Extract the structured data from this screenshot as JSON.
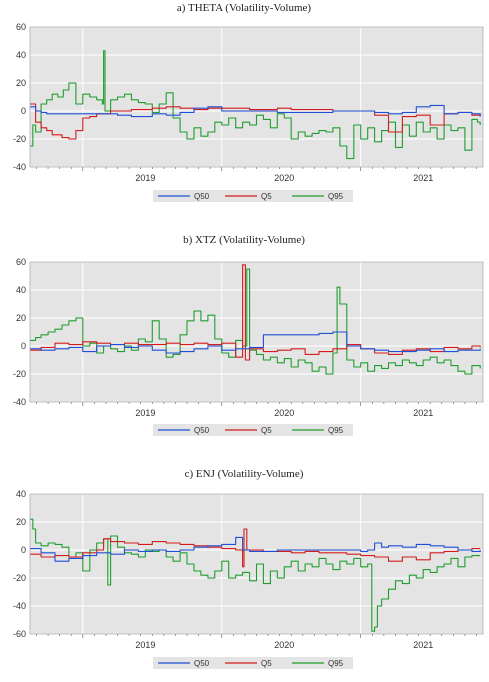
{
  "chart_data": [
    {
      "type": "line",
      "title": "a)   THETA (Volatility-Volume)",
      "ylim": [
        -40,
        60
      ],
      "yticks": [
        60,
        40,
        20,
        0,
        -20,
        -40
      ],
      "xlim": [
        2018.62,
        2021.88
      ],
      "xticks": [
        2019,
        2020,
        2021
      ],
      "grid": true,
      "legend_position": "bottom-center",
      "series": [
        {
          "name": "Q50",
          "color": "#1f4fd6",
          "x": [
            2018.62,
            2018.66,
            2018.7,
            2018.74,
            2018.78,
            2018.85,
            2018.95,
            2019.05,
            2019.12,
            2019.25,
            2019.35,
            2019.5,
            2019.6,
            2019.7,
            2019.8,
            2019.9,
            2020.0,
            2020.1,
            2020.2,
            2020.3,
            2020.4,
            2020.5,
            2020.6,
            2020.7,
            2020.8,
            2020.9,
            2021.0,
            2021.1,
            2021.2,
            2021.3,
            2021.4,
            2021.5,
            2021.6,
            2021.7,
            2021.8,
            2021.86
          ],
          "values": [
            3,
            0,
            -1,
            -2,
            -2,
            -2,
            -2,
            -2,
            -2,
            -3,
            -4,
            -2,
            -3,
            -1,
            2,
            3,
            0,
            0,
            0,
            0,
            -1,
            -1,
            -1,
            -1,
            0,
            0,
            0,
            -1,
            -2,
            -1,
            3,
            4,
            -2,
            -1,
            -2,
            -4
          ]
        },
        {
          "name": "Q5",
          "color": "#d41c1c",
          "x": [
            2018.62,
            2018.66,
            2018.7,
            2018.74,
            2018.78,
            2018.85,
            2018.9,
            2018.95,
            2019.0,
            2019.05,
            2019.1,
            2019.2,
            2019.35,
            2019.5,
            2019.6,
            2019.7,
            2019.8,
            2019.9,
            2020.0,
            2020.1,
            2020.2,
            2020.3,
            2020.4,
            2020.5,
            2020.6,
            2020.7,
            2020.8,
            2020.9,
            2021.0,
            2021.1,
            2021.2,
            2021.3,
            2021.4,
            2021.5,
            2021.6,
            2021.7,
            2021.8,
            2021.86
          ],
          "values": [
            5,
            -8,
            -12,
            -14,
            -17,
            -19,
            -20,
            -14,
            -5,
            -4,
            -2,
            0,
            1,
            2,
            3,
            2,
            1,
            2,
            2,
            2,
            1,
            1,
            2,
            1,
            1,
            1,
            0,
            0,
            0,
            -3,
            -15,
            -4,
            -3,
            -10,
            -2,
            -1,
            -3,
            -2
          ]
        },
        {
          "name": "Q95",
          "color": "#1e9e2e",
          "x": [
            2018.62,
            2018.64,
            2018.66,
            2018.7,
            2018.74,
            2018.78,
            2018.82,
            2018.86,
            2018.9,
            2018.95,
            2019.0,
            2019.05,
            2019.1,
            2019.14,
            2019.15,
            2019.16,
            2019.2,
            2019.25,
            2019.3,
            2019.35,
            2019.4,
            2019.45,
            2019.5,
            2019.55,
            2019.6,
            2019.65,
            2019.7,
            2019.75,
            2019.8,
            2019.85,
            2019.9,
            2019.95,
            2020.0,
            2020.05,
            2020.1,
            2020.15,
            2020.2,
            2020.25,
            2020.3,
            2020.35,
            2020.4,
            2020.45,
            2020.5,
            2020.55,
            2020.6,
            2020.65,
            2020.7,
            2020.75,
            2020.8,
            2020.85,
            2020.9,
            2020.95,
            2021.0,
            2021.05,
            2021.1,
            2021.15,
            2021.2,
            2021.25,
            2021.3,
            2021.35,
            2021.4,
            2021.45,
            2021.5,
            2021.55,
            2021.6,
            2021.65,
            2021.7,
            2021.75,
            2021.8,
            2021.84,
            2021.86
          ],
          "values": [
            -25,
            -10,
            -15,
            5,
            8,
            12,
            10,
            15,
            20,
            5,
            12,
            10,
            8,
            5,
            43,
            0,
            8,
            10,
            12,
            8,
            6,
            5,
            -1,
            5,
            13,
            -5,
            -15,
            -20,
            -12,
            -18,
            -15,
            -8,
            -10,
            -5,
            -12,
            -8,
            -10,
            -3,
            -6,
            -12,
            -2,
            -5,
            -20,
            -15,
            -18,
            -16,
            -14,
            -15,
            -12,
            -25,
            -34,
            -10,
            -20,
            -12,
            -22,
            -14,
            -8,
            -26,
            -10,
            -18,
            -8,
            -15,
            -12,
            -20,
            -10,
            -14,
            -12,
            -28,
            -6,
            -8,
            -10
          ]
        }
      ]
    },
    {
      "type": "line",
      "title": "b)   XTZ (Volatility-Volume)",
      "ylim": [
        -40,
        60
      ],
      "yticks": [
        60,
        40,
        20,
        0,
        -20,
        -40
      ],
      "xlim": [
        2018.62,
        2021.88
      ],
      "xticks": [
        2019,
        2020,
        2021
      ],
      "grid": true,
      "legend_position": "bottom-center",
      "series": [
        {
          "name": "Q50",
          "color": "#1f4fd6",
          "x": [
            2018.62,
            2018.7,
            2018.8,
            2018.9,
            2019.0,
            2019.1,
            2019.2,
            2019.3,
            2019.4,
            2019.5,
            2019.6,
            2019.7,
            2019.8,
            2019.9,
            2020.0,
            2020.1,
            2020.2,
            2020.3,
            2020.4,
            2020.5,
            2020.6,
            2020.7,
            2020.8,
            2020.9,
            2021.0,
            2021.1,
            2021.2,
            2021.3,
            2021.4,
            2021.5,
            2021.6,
            2021.7,
            2021.8,
            2021.86
          ],
          "values": [
            -2,
            -3,
            -2,
            -1,
            -4,
            0,
            1,
            -1,
            0,
            -3,
            -5,
            -4,
            -2,
            0,
            -3,
            -2,
            -1,
            8,
            8,
            8,
            8,
            9,
            10,
            0,
            -2,
            -3,
            -4,
            -4,
            -3,
            -2,
            -4,
            -3,
            -3,
            -2
          ]
        },
        {
          "name": "Q5",
          "color": "#d41c1c",
          "x": [
            2018.62,
            2018.7,
            2018.8,
            2018.9,
            2019.0,
            2019.1,
            2019.2,
            2019.3,
            2019.4,
            2019.5,
            2019.6,
            2019.7,
            2019.8,
            2019.9,
            2020.0,
            2020.1,
            2020.15,
            2020.17,
            2020.2,
            2020.3,
            2020.4,
            2020.5,
            2020.6,
            2020.7,
            2020.8,
            2020.9,
            2021.0,
            2021.1,
            2021.2,
            2021.3,
            2021.4,
            2021.5,
            2021.6,
            2021.7,
            2021.8,
            2021.86
          ],
          "values": [
            -3,
            -1,
            2,
            1,
            3,
            2,
            1,
            2,
            1,
            1,
            2,
            1,
            2,
            1,
            2,
            -8,
            58,
            -10,
            -2,
            -4,
            -3,
            -2,
            -6,
            -4,
            -2,
            1,
            -2,
            -5,
            -6,
            -3,
            -2,
            -4,
            -1,
            -2,
            0,
            -1
          ]
        },
        {
          "name": "Q95",
          "color": "#1e9e2e",
          "x": [
            2018.62,
            2018.66,
            2018.7,
            2018.75,
            2018.8,
            2018.85,
            2018.9,
            2018.95,
            2019.0,
            2019.05,
            2019.1,
            2019.15,
            2019.2,
            2019.25,
            2019.3,
            2019.35,
            2019.4,
            2019.45,
            2019.5,
            2019.55,
            2019.6,
            2019.65,
            2019.7,
            2019.75,
            2019.8,
            2019.85,
            2019.9,
            2019.95,
            2020.0,
            2020.05,
            2020.1,
            2020.15,
            2020.18,
            2020.2,
            2020.25,
            2020.3,
            2020.35,
            2020.4,
            2020.45,
            2020.5,
            2020.55,
            2020.6,
            2020.65,
            2020.7,
            2020.75,
            2020.8,
            2020.83,
            2020.85,
            2020.9,
            2020.95,
            2021.0,
            2021.05,
            2021.1,
            2021.15,
            2021.2,
            2021.25,
            2021.3,
            2021.35,
            2021.4,
            2021.45,
            2021.5,
            2021.55,
            2021.6,
            2021.65,
            2021.7,
            2021.75,
            2021.8,
            2021.86
          ],
          "values": [
            4,
            6,
            8,
            10,
            12,
            15,
            18,
            20,
            0,
            2,
            -5,
            0,
            -2,
            -4,
            0,
            -3,
            5,
            3,
            18,
            5,
            -8,
            -6,
            8,
            18,
            25,
            18,
            22,
            5,
            -5,
            -8,
            4,
            0,
            55,
            -3,
            -6,
            -10,
            -8,
            -12,
            -9,
            -15,
            -10,
            -12,
            -18,
            -15,
            -20,
            -5,
            42,
            30,
            -10,
            -15,
            -12,
            -18,
            -14,
            -16,
            -12,
            -14,
            -10,
            -12,
            -14,
            -10,
            -8,
            -12,
            -10,
            -14,
            -18,
            -20,
            -14,
            -16
          ]
        }
      ]
    },
    {
      "type": "line",
      "title": "c)   ENJ (Volatility-Volume)",
      "ylim": [
        -60,
        40
      ],
      "yticks": [
        40,
        20,
        0,
        -20,
        -40,
        -60
      ],
      "xlim": [
        2018.62,
        2021.88
      ],
      "xticks": [
        2019,
        2020,
        2021
      ],
      "grid": true,
      "legend_position": "bottom-center",
      "series": [
        {
          "name": "Q50",
          "color": "#1f4fd6",
          "x": [
            2018.62,
            2018.7,
            2018.8,
            2018.9,
            2019.0,
            2019.1,
            2019.2,
            2019.3,
            2019.4,
            2019.5,
            2019.6,
            2019.7,
            2019.8,
            2019.9,
            2020.0,
            2020.1,
            2020.15,
            2020.2,
            2020.3,
            2020.4,
            2020.5,
            2020.6,
            2020.7,
            2020.8,
            2020.9,
            2021.0,
            2021.05,
            2021.1,
            2021.15,
            2021.2,
            2021.3,
            2021.4,
            2021.5,
            2021.6,
            2021.7,
            2021.8,
            2021.86
          ],
          "values": [
            1,
            -2,
            -8,
            -6,
            -4,
            -2,
            -3,
            0,
            -1,
            0,
            -1,
            0,
            2,
            3,
            4,
            9,
            0,
            -1,
            -1,
            0,
            0,
            0,
            0,
            0,
            0,
            -1,
            0,
            5,
            2,
            3,
            2,
            4,
            3,
            2,
            0,
            -1,
            0
          ]
        },
        {
          "name": "Q5",
          "color": "#d41c1c",
          "x": [
            2018.62,
            2018.7,
            2018.8,
            2018.9,
            2019.0,
            2019.1,
            2019.15,
            2019.2,
            2019.3,
            2019.4,
            2019.5,
            2019.6,
            2019.7,
            2019.8,
            2019.9,
            2020.0,
            2020.1,
            2020.15,
            2020.16,
            2020.18,
            2020.3,
            2020.4,
            2020.5,
            2020.6,
            2020.7,
            2020.8,
            2020.9,
            2021.0,
            2021.1,
            2021.2,
            2021.3,
            2021.4,
            2021.5,
            2021.6,
            2021.7,
            2021.8,
            2021.86
          ],
          "values": [
            -3,
            -5,
            -4,
            -5,
            -2,
            0,
            8,
            6,
            5,
            4,
            6,
            5,
            4,
            3,
            2,
            1,
            0,
            -12,
            15,
            0,
            -1,
            -1,
            -2,
            -1,
            -2,
            -2,
            -3,
            -4,
            -5,
            -8,
            -5,
            -7,
            -2,
            -1,
            0,
            1,
            1
          ]
        },
        {
          "name": "Q95",
          "color": "#1e9e2e",
          "x": [
            2018.62,
            2018.64,
            2018.66,
            2018.7,
            2018.75,
            2018.8,
            2018.85,
            2018.9,
            2018.95,
            2019.0,
            2019.05,
            2019.1,
            2019.15,
            2019.18,
            2019.2,
            2019.25,
            2019.3,
            2019.35,
            2019.4,
            2019.45,
            2019.5,
            2019.55,
            2019.6,
            2019.65,
            2019.7,
            2019.75,
            2019.8,
            2019.85,
            2019.9,
            2019.95,
            2020.0,
            2020.05,
            2020.1,
            2020.15,
            2020.2,
            2020.25,
            2020.3,
            2020.35,
            2020.4,
            2020.45,
            2020.5,
            2020.55,
            2020.6,
            2020.65,
            2020.7,
            2020.75,
            2020.8,
            2020.85,
            2020.9,
            2020.95,
            2021.0,
            2021.05,
            2021.08,
            2021.1,
            2021.12,
            2021.15,
            2021.2,
            2021.25,
            2021.3,
            2021.35,
            2021.4,
            2021.45,
            2021.5,
            2021.55,
            2021.6,
            2021.65,
            2021.7,
            2021.75,
            2021.8,
            2021.86
          ],
          "values": [
            22,
            15,
            5,
            3,
            5,
            4,
            2,
            -5,
            -2,
            -15,
            0,
            5,
            8,
            -25,
            10,
            2,
            -2,
            -3,
            -5,
            0,
            -1,
            0,
            -5,
            -8,
            -2,
            -10,
            -15,
            -18,
            -20,
            -15,
            -8,
            -20,
            -18,
            -16,
            -22,
            -10,
            -24,
            -15,
            -20,
            -12,
            -8,
            -15,
            -10,
            -12,
            -6,
            -10,
            -14,
            -8,
            -10,
            -6,
            -12,
            -10,
            -58,
            -55,
            -40,
            -35,
            -28,
            -22,
            -24,
            -18,
            -20,
            -14,
            -16,
            -12,
            -10,
            -6,
            -12,
            -5,
            -4,
            -4
          ]
        }
      ]
    }
  ]
}
